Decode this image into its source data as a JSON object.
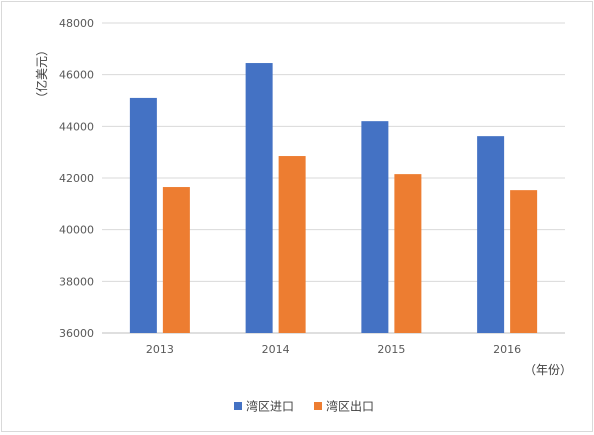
{
  "chart_data": {
    "type": "bar",
    "categories": [
      "2013",
      "2014",
      "2015",
      "2016"
    ],
    "series": [
      {
        "name": "湾区进口",
        "color": "#4472c4",
        "values": [
          45100,
          46450,
          44200,
          43620
        ]
      },
      {
        "name": "湾区出口",
        "color": "#ed7d31",
        "values": [
          41650,
          42850,
          42150,
          41530
        ]
      }
    ],
    "ylim": [
      36000,
      48000
    ],
    "ytick_step": 2000,
    "yticks": [
      "36000",
      "38000",
      "40000",
      "42000",
      "44000",
      "46000",
      "48000"
    ],
    "ylabel": "（亿美元）",
    "xlabel": "（年份）",
    "grid": true,
    "legend_position": "bottom"
  }
}
